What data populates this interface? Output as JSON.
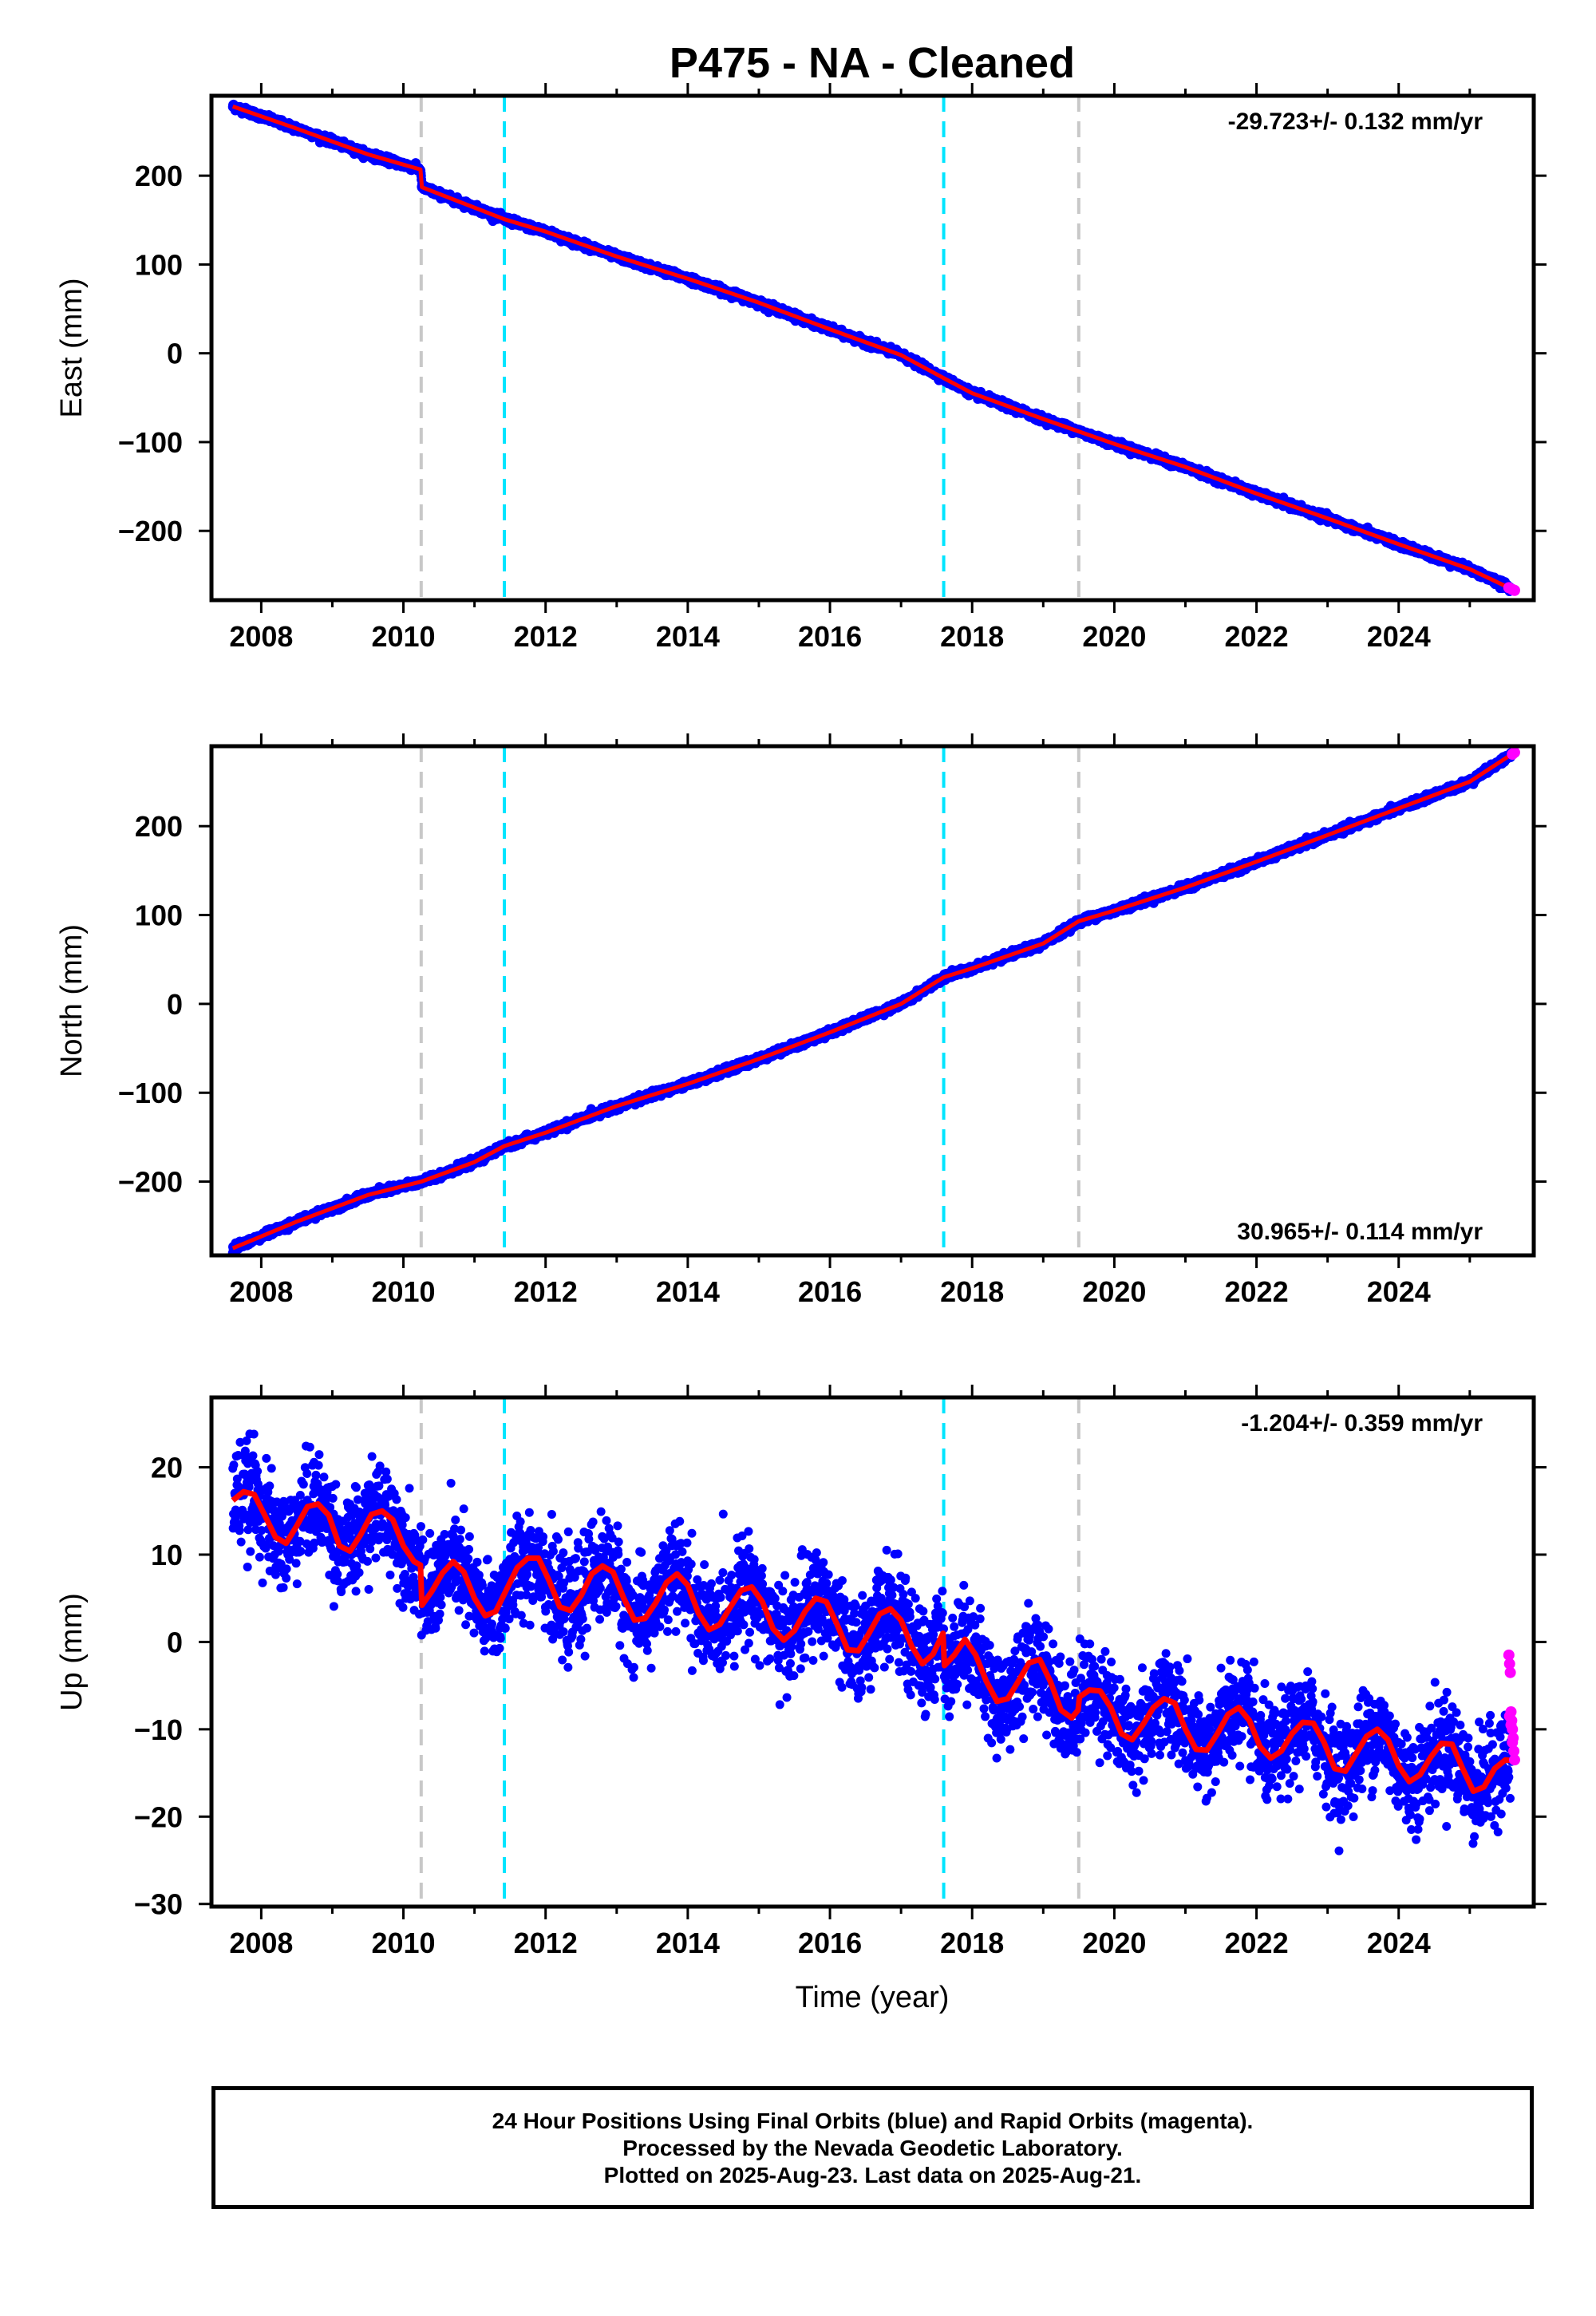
{
  "title": "P475  - NA - Cleaned",
  "xlabel": "Time (year)",
  "footer": {
    "line1": "24 Hour Positions Using Final Orbits (blue) and Rapid Orbits (magenta).",
    "line2": "Processed by the Nevada Geodetic Laboratory.",
    "line3": "Plotted on 2025-Aug-23. Last data on 2025-Aug-21."
  },
  "colors": {
    "final_orbits": "#0000ff",
    "rapid_orbits": "#ff00ff",
    "model_fit": "#ff0000",
    "equipment_change": "#c8c8c8",
    "earthquake": "#00e5ff"
  },
  "chart_data": [
    {
      "type": "scatter",
      "panel": "east",
      "ylabel": "East (mm)",
      "rate_label": "-29.723+/- 0.132 mm/yr",
      "rate_label_position": "top-right",
      "xlim": [
        2007.3,
        2025.9
      ],
      "ylim": [
        -278,
        290
      ],
      "x_ticks": [
        2008,
        2010,
        2012,
        2014,
        2016,
        2018,
        2020,
        2022,
        2024
      ],
      "y_ticks": [
        -200,
        -100,
        0,
        100,
        200
      ],
      "grid": false,
      "vertical_lines": [
        {
          "x": 2010.25,
          "kind": "equipment_change"
        },
        {
          "x": 2011.42,
          "kind": "earthquake"
        },
        {
          "x": 2017.6,
          "kind": "earthquake"
        },
        {
          "x": 2019.5,
          "kind": "equipment_change"
        }
      ],
      "series": [
        {
          "role": "model_fit",
          "x": [
            2007.6,
            2008.5,
            2009.5,
            2010.24,
            2010.26,
            2011.42,
            2012,
            2013,
            2014,
            2015,
            2016,
            2017,
            2017.6,
            2018,
            2019,
            2019.5,
            2020,
            2021,
            2022,
            2023,
            2024,
            2025,
            2025.63
          ],
          "y": [
            278,
            253,
            224,
            207,
            187,
            151,
            137,
            109,
            84,
            57,
            27,
            -2,
            -28,
            -45,
            -74,
            -88,
            -102,
            -128,
            -158,
            -186,
            -215,
            -243,
            -267
          ]
        },
        {
          "role": "rapid_orbits",
          "x": [
            2025.55,
            2025.6,
            2025.63
          ],
          "y": [
            -264,
            -266,
            -267
          ]
        }
      ]
    },
    {
      "type": "scatter",
      "panel": "north",
      "ylabel": "North (mm)",
      "rate_label": "30.965+/- 0.114 mm/yr",
      "rate_label_position": "bottom-right",
      "xlim": [
        2007.3,
        2025.9
      ],
      "ylim": [
        -283,
        290
      ],
      "x_ticks": [
        2008,
        2010,
        2012,
        2014,
        2016,
        2018,
        2020,
        2022,
        2024
      ],
      "y_ticks": [
        -200,
        -100,
        0,
        100,
        200
      ],
      "grid": false,
      "vertical_lines": [
        {
          "x": 2010.25,
          "kind": "equipment_change"
        },
        {
          "x": 2011.42,
          "kind": "earthquake"
        },
        {
          "x": 2017.6,
          "kind": "earthquake"
        },
        {
          "x": 2019.5,
          "kind": "equipment_change"
        }
      ],
      "series": [
        {
          "role": "model_fit",
          "x": [
            2007.6,
            2008.5,
            2009.5,
            2010.25,
            2011,
            2011.42,
            2012,
            2013,
            2014,
            2015,
            2016,
            2017,
            2017.6,
            2018,
            2019,
            2019.5,
            2020,
            2021,
            2022,
            2023,
            2024,
            2025,
            2025.63
          ],
          "y": [
            -275,
            -245,
            -215,
            -200,
            -178,
            -160,
            -145,
            -115,
            -90,
            -62,
            -32,
            0,
            30,
            40,
            68,
            93,
            105,
            131,
            160,
            190,
            220,
            250,
            283
          ]
        },
        {
          "role": "rapid_orbits",
          "x": [
            2025.6,
            2025.63
          ],
          "y": [
            281,
            283
          ]
        }
      ]
    },
    {
      "type": "scatter",
      "panel": "up",
      "ylabel": "Up (mm)",
      "rate_label": "-1.204+/- 0.359 mm/yr",
      "rate_label_position": "top-right",
      "xlim": [
        2007.3,
        2025.9
      ],
      "ylim": [
        -30.3,
        28
      ],
      "x_ticks": [
        2008,
        2010,
        2012,
        2014,
        2016,
        2018,
        2020,
        2022,
        2024
      ],
      "y_ticks": [
        -30,
        -20,
        -10,
        0,
        10,
        20
      ],
      "grid": false,
      "vertical_lines": [
        {
          "x": 2010.25,
          "kind": "equipment_change"
        },
        {
          "x": 2011.42,
          "kind": "earthquake"
        },
        {
          "x": 2017.6,
          "kind": "earthquake"
        },
        {
          "x": 2019.5,
          "kind": "equipment_change"
        }
      ],
      "series": [
        {
          "role": "model_fit",
          "x": [
            2007.6,
            2007.75,
            2007.9,
            2008.05,
            2008.2,
            2008.35,
            2008.5,
            2008.65,
            2008.8,
            2008.95,
            2009.1,
            2009.25,
            2009.4,
            2009.55,
            2009.7,
            2009.85,
            2010,
            2010.15,
            2010.24,
            2010.26,
            2010.4,
            2010.55,
            2010.7,
            2010.85,
            2011,
            2011.15,
            2011.3,
            2011.45,
            2011.6,
            2011.75,
            2011.9,
            2012.05,
            2012.2,
            2012.35,
            2012.5,
            2012.65,
            2012.8,
            2012.95,
            2013.1,
            2013.25,
            2013.4,
            2013.55,
            2013.7,
            2013.85,
            2014,
            2014.15,
            2014.3,
            2014.45,
            2014.6,
            2014.75,
            2014.9,
            2015.05,
            2015.2,
            2015.35,
            2015.5,
            2015.65,
            2015.8,
            2015.95,
            2016.1,
            2016.25,
            2016.4,
            2016.55,
            2016.7,
            2016.85,
            2017,
            2017.15,
            2017.3,
            2017.45,
            2017.59,
            2017.61,
            2017.75,
            2017.9,
            2018.05,
            2018.2,
            2018.35,
            2018.5,
            2018.65,
            2018.8,
            2018.95,
            2019.1,
            2019.25,
            2019.4,
            2019.49,
            2019.51,
            2019.65,
            2019.8,
            2019.95,
            2020.1,
            2020.25,
            2020.4,
            2020.55,
            2020.7,
            2020.85,
            2021,
            2021.15,
            2021.3,
            2021.45,
            2021.6,
            2021.75,
            2021.9,
            2022.05,
            2022.2,
            2022.35,
            2022.5,
            2022.65,
            2022.8,
            2022.95,
            2023.1,
            2023.25,
            2023.4,
            2023.55,
            2023.7,
            2023.85,
            2024,
            2024.15,
            2024.3,
            2024.45,
            2024.6,
            2024.75,
            2024.9,
            2025.05,
            2025.2,
            2025.35,
            2025.5,
            2025.63
          ],
          "y": [
            16.2,
            17.2,
            16.9,
            14.5,
            12.0,
            11.3,
            13.3,
            15.5,
            15.8,
            14.5,
            11.0,
            10.4,
            12.3,
            14.6,
            15.0,
            14.0,
            11.0,
            9.2,
            8.8,
            4.2,
            5.8,
            7.9,
            9.2,
            8.0,
            5.0,
            3.0,
            3.5,
            6.0,
            8.5,
            9.6,
            9.6,
            7.0,
            4.0,
            3.6,
            5.3,
            7.8,
            8.7,
            8.0,
            5.0,
            2.5,
            2.7,
            4.5,
            6.8,
            7.8,
            6.5,
            3.3,
            1.4,
            2.0,
            4.0,
            5.9,
            6.3,
            4.6,
            1.5,
            0.2,
            1.3,
            3.5,
            5.0,
            4.6,
            2.0,
            -0.9,
            -1.0,
            1.0,
            3.2,
            3.8,
            2.5,
            -0.5,
            -2.5,
            -1.4,
            1.0,
            -2.7,
            -1.5,
            0.3,
            -1.5,
            -4.5,
            -6.8,
            -6.5,
            -4.5,
            -2.4,
            -2.0,
            -4.5,
            -7.8,
            -8.7,
            -7.8,
            -6.3,
            -5.5,
            -5.6,
            -7.5,
            -10.5,
            -11.2,
            -9.5,
            -7.5,
            -6.5,
            -7.0,
            -10.0,
            -12.3,
            -12.4,
            -10.5,
            -8.3,
            -7.5,
            -9.0,
            -12.0,
            -13.3,
            -12.5,
            -10.5,
            -9.2,
            -9.3,
            -11.5,
            -14.5,
            -14.8,
            -12.8,
            -10.8,
            -10.0,
            -11.2,
            -14.2,
            -16.0,
            -15.2,
            -13.2,
            -11.6,
            -11.7,
            -14.5,
            -17.1,
            -16.6,
            -14.5,
            -13.5,
            -13.6
          ]
        },
        {
          "role": "rapid_orbits",
          "x": [
            2025.55,
            2025.56,
            2025.57,
            2025.58,
            2025.59,
            2025.6,
            2025.61,
            2025.62,
            2025.63,
            2025.56,
            2025.58,
            2025.6
          ],
          "y": [
            -1.5,
            -2.5,
            -3.5,
            -8.0,
            -9.0,
            -10.0,
            -11.0,
            -12.5,
            -13.5,
            -8.5,
            -9.5,
            -11.5
          ]
        }
      ]
    }
  ]
}
